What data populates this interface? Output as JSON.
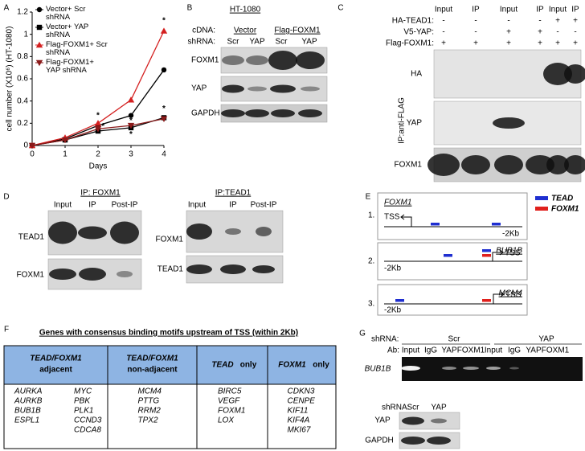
{
  "panel_labels": [
    "A",
    "B",
    "C",
    "D",
    "E",
    "F",
    "G"
  ],
  "chart_data": {
    "type": "line",
    "y_label": "cell number (X10⁶) (HT-1080)",
    "x_label": "Days",
    "x": [
      0,
      1,
      2,
      3,
      4
    ],
    "xlim": [
      0,
      4
    ],
    "xticks": [
      0,
      1,
      2,
      3,
      4
    ],
    "ylim": [
      0,
      1.2
    ],
    "yticks": [
      0,
      0.2,
      0.4,
      0.6,
      0.8,
      1,
      1.2
    ],
    "series": [
      {
        "name": "Vector+ Scr shRNA",
        "color": "#000000",
        "marker": "circle",
        "values": [
          0,
          0.06,
          0.18,
          0.27,
          0.68
        ]
      },
      {
        "name": "Vector+ YAP shRNA",
        "color": "#000000",
        "marker": "square",
        "values": [
          0,
          0.05,
          0.13,
          0.16,
          0.25
        ]
      },
      {
        "name": "Flag-FOXM1+ Scr shRNA",
        "color": "#d42020",
        "marker": "triangle",
        "values": [
          0,
          0.07,
          0.2,
          0.41,
          1.03
        ]
      },
      {
        "name": "Flag-FOXM1+ YAP shRNA",
        "color": "#8b1a1a",
        "marker": "triangle-down",
        "values": [
          0,
          0.05,
          0.15,
          0.18,
          0.24
        ]
      }
    ],
    "annotations": [
      {
        "text": "*",
        "x": 2,
        "y": 0.27
      },
      {
        "text": "*",
        "x": 2.15,
        "y": 0.17
      },
      {
        "text": "*",
        "x": 3,
        "y": 0.22
      },
      {
        "text": "*",
        "x": 3,
        "y": 0.1
      },
      {
        "text": "*",
        "x": 4,
        "y": 1.12
      },
      {
        "text": "*",
        "x": 4,
        "y": 0.33
      }
    ]
  },
  "panel_b": {
    "title": "HT-1080",
    "cdna_label": "cDNA:",
    "cdna": [
      "Vector",
      "Flag-FOXM1"
    ],
    "shrna_label": "shRNA:",
    "shrna": [
      "Scr",
      "YAP",
      "Scr",
      "YAP"
    ],
    "rows": [
      "FOXM1",
      "YAP",
      "GAPDH"
    ]
  },
  "panel_c": {
    "columns": [
      "Input",
      "IP",
      "Input",
      "IP",
      "Input",
      "IP"
    ],
    "conditions": [
      {
        "label": "HA-TEAD1:",
        "signs": [
          "-",
          "-",
          "-",
          "-",
          "+",
          "+"
        ]
      },
      {
        "label": "V5-YAP:",
        "signs": [
          "-",
          "-",
          "+",
          "+",
          "-",
          "-"
        ]
      },
      {
        "label": "Flag-FOXM1:",
        "signs": [
          "+",
          "+",
          "+",
          "+",
          "+",
          "+"
        ]
      }
    ],
    "vertical_label": "IP:anti-FLAG",
    "rows": [
      "HA",
      "YAP",
      "FOXM1"
    ]
  },
  "panel_d": {
    "left": {
      "title": "IP: FOXM1",
      "columns": [
        "Input",
        "IP",
        "Post-IP"
      ],
      "rows": [
        "TEAD1",
        "FOXM1"
      ]
    },
    "right": {
      "title": "IP:TEAD1",
      "columns": [
        "Input",
        "IP",
        "Post-IP"
      ],
      "rows": [
        "FOXM1",
        "TEAD1"
      ]
    }
  },
  "panel_e": {
    "legend": [
      {
        "name": "TEAD",
        "color": "#1f2fd0"
      },
      {
        "name": "FOXM1",
        "color": "#e0201c"
      }
    ],
    "diagrams": [
      {
        "number": "1.",
        "gene": "FOXM1",
        "tss": "TSS",
        "distance": "-2Kb"
      },
      {
        "number": "2.",
        "gene": "BUB1B",
        "tss": "TSS",
        "distance": "-2Kb"
      },
      {
        "number": "3.",
        "gene": "MCM4",
        "tss": "TSS",
        "distance": "-2Kb"
      }
    ]
  },
  "panel_f": {
    "title": "Genes with consensus binding motifs upstream of TSS (within 2Kb)",
    "columns": [
      {
        "genes": "TEAD/FOXM1",
        "label": "adjacent",
        "lists": [
          [
            "AURKA",
            "AURKB",
            "BUB1B",
            "ESPL1"
          ],
          [
            "MYC",
            "PBK",
            "PLK1",
            "CCND3",
            "CDCA8"
          ]
        ]
      },
      {
        "genes": "TEAD/FOXM1",
        "label": "non-adjacent",
        "lists": [
          [
            "MCM4",
            "PTTG",
            "RRM2",
            "TPX2"
          ]
        ]
      },
      {
        "genes": "TEAD",
        "label": "only",
        "lists": [
          [
            "BIRC5",
            "VEGF",
            "FOXM1",
            "LOX"
          ]
        ]
      },
      {
        "genes": "FOXM1",
        "label": "only",
        "lists": [
          [
            "CDKN3",
            "CENPE",
            "KIF11",
            "KIF4A",
            "MKI67"
          ]
        ]
      }
    ]
  },
  "panel_g": {
    "shrna_label": "shRNA:",
    "groups": [
      "Scr",
      "YAP"
    ],
    "ab_label": "Ab:",
    "lanes": [
      "Input",
      "IgG",
      "YAP",
      "FOXM1",
      "Input",
      "IgG",
      "YAP",
      "FOXM1"
    ],
    "row": "BUB1B",
    "lower": {
      "shrna_label": "shRNA:",
      "groups": [
        "Scr",
        "YAP"
      ],
      "rows": [
        "YAP",
        "GAPDH"
      ]
    }
  }
}
